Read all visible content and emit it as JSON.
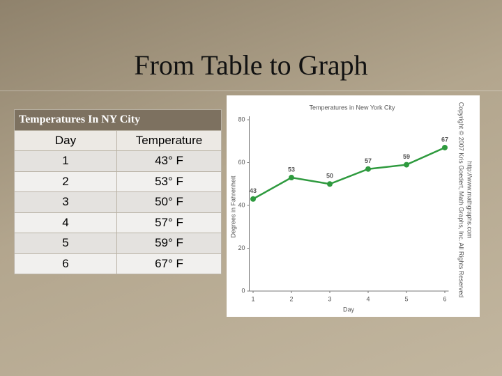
{
  "title": "From Table to Graph",
  "table": {
    "caption": "Temperatures In NY City",
    "headers": [
      "Day",
      "Temperature"
    ],
    "rows": [
      [
        "1",
        "43° F"
      ],
      [
        "2",
        "53° F"
      ],
      [
        "3",
        "50° F"
      ],
      [
        "4",
        "57° F"
      ],
      [
        "5",
        "59° F"
      ],
      [
        "6",
        "67° F"
      ]
    ]
  },
  "chart_data": {
    "type": "line",
    "title": "Temperatures in New York City",
    "x_label": "Day",
    "y_label": "Degrees in Fahrenheit",
    "x": [
      1,
      2,
      3,
      4,
      5,
      6
    ],
    "values": [
      43,
      53,
      50,
      57,
      59,
      67
    ],
    "color": "#2e9a3e",
    "xlim": [
      0.9,
      6.1
    ],
    "xticks": [
      1,
      2,
      3,
      4,
      5,
      6
    ],
    "ylim": [
      0,
      80
    ],
    "yticks": [
      0,
      20,
      40,
      60,
      80
    ],
    "grid": false,
    "credits": [
      "Copyright © 2007 Kris Goedert, Math Graphs, Inc. All Rights Reserved",
      "http://www.mathgraphs.com"
    ]
  }
}
